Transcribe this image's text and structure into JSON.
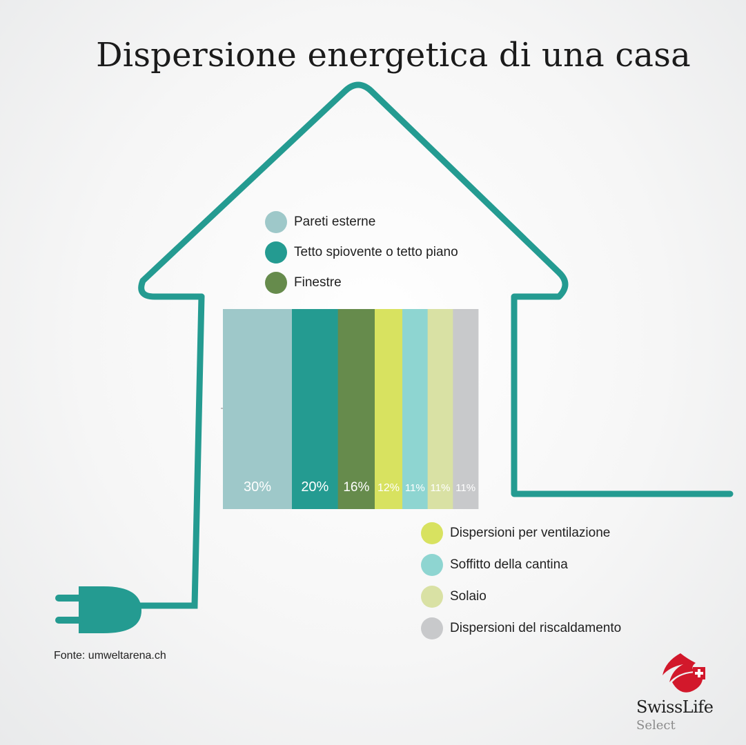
{
  "chart_data": {
    "type": "bar",
    "title": "Dispersione energetica di una casa",
    "xlabel": "",
    "ylabel": "",
    "stacked_horizontal": true,
    "series": [
      {
        "name": "Pareti esterne",
        "value": 30,
        "label": "30%",
        "color": "#9ec8c9"
      },
      {
        "name": "Tetto spiovente o tetto piano",
        "value": 20,
        "label": "20%",
        "color": "#249b91"
      },
      {
        "name": "Finestre",
        "value": 16,
        "label": "16%",
        "color": "#668b4c"
      },
      {
        "name": "Dispersioni per ventilazione",
        "value": 12,
        "label": "12%",
        "color": "#d8e260"
      },
      {
        "name": "Soffitto della cantina",
        "value": 11,
        "label": "11%",
        "color": "#8ed5d1"
      },
      {
        "name": "Solaio",
        "value": 11,
        "label": "11%",
        "color": "#d9e1a4"
      },
      {
        "name": "Dispersioni del riscaldamento",
        "value": 11,
        "label": "11%",
        "color": "#c8c9cb"
      }
    ]
  },
  "legend_top": [
    {
      "label": "Pareti esterne",
      "color": "#9ec8c9"
    },
    {
      "label": "Tetto spiovente o tetto piano",
      "color": "#249b91"
    },
    {
      "label": "Finestre",
      "color": "#668b4c"
    }
  ],
  "legend_bottom": [
    {
      "label": "Dispersioni per ventilazione",
      "color": "#d8e260"
    },
    {
      "label": "Soffitto della cantina",
      "color": "#8ed5d1"
    },
    {
      "label": "Solaio",
      "color": "#d9e1a4"
    },
    {
      "label": "Dispersioni del riscaldamento",
      "color": "#c8c9cb"
    }
  ],
  "source": "Fonte: umweltarena.ch",
  "logo": {
    "name": "SwissLife",
    "sub": "Select",
    "colors": {
      "red": "#d2182b",
      "outline": "#249b91"
    }
  },
  "icons": [
    "house-outline-icon",
    "plug-icon",
    "swisslife-logo-icon"
  ]
}
